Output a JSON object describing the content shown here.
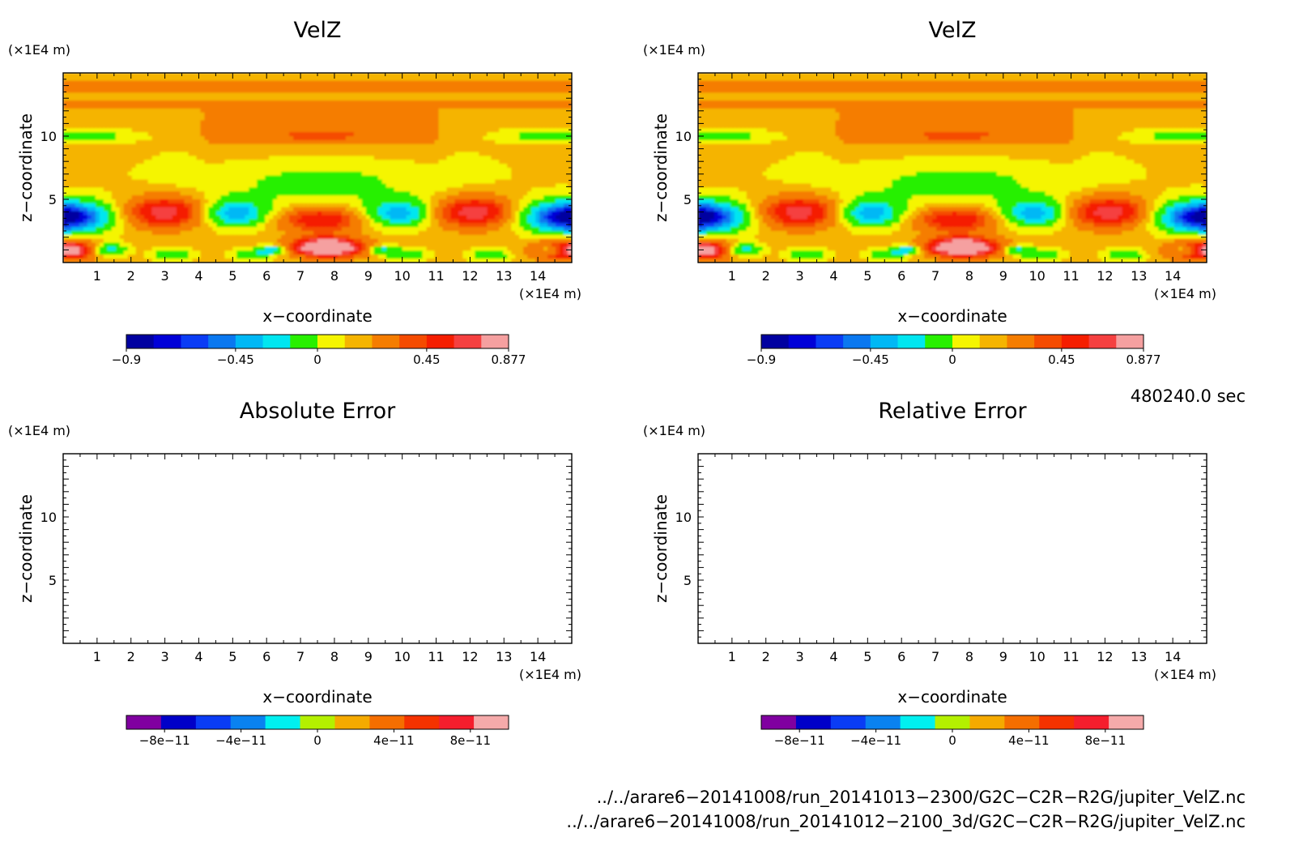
{
  "chart_data": [
    {
      "type": "heatmap",
      "title": "VelZ",
      "xlabel": "x−coordinate",
      "ylabel": "z−coordinate",
      "x_unit": "(×1E4 m)",
      "y_unit": "(×1E4 m)",
      "xlim": [
        0,
        15
      ],
      "ylim": [
        0,
        15
      ],
      "x_ticks": [
        "1",
        "2",
        "3",
        "4",
        "5",
        "6",
        "7",
        "8",
        "9",
        "10",
        "11",
        "12",
        "13",
        "14"
      ],
      "y_ticks": [
        "5",
        "10"
      ],
      "colorbar": {
        "levels": [
          -0.9,
          -0.8,
          -0.7,
          -0.6,
          -0.45,
          -0.35,
          -0.2,
          0,
          0.1,
          0.2,
          0.35,
          0.45,
          0.6,
          0.7,
          0.877
        ],
        "colors": [
          "#0000a0",
          "#0000d8",
          "#0a3cf5",
          "#0a78f0",
          "#00b8f5",
          "#00e6f0",
          "#28f000",
          "#f5f500",
          "#f5b400",
          "#f57d00",
          "#f54b00",
          "#f51e00",
          "#f54040",
          "#f5a0a0"
        ],
        "tick_labels": [
          "−0.9",
          "−0.45",
          "0",
          "0.45",
          "0.877"
        ]
      }
    },
    {
      "type": "heatmap",
      "title": "VelZ",
      "xlabel": "x−coordinate",
      "ylabel": "z−coordinate",
      "x_unit": "(×1E4 m)",
      "y_unit": "(×1E4 m)",
      "xlim": [
        0,
        15
      ],
      "ylim": [
        0,
        15
      ],
      "x_ticks": [
        "1",
        "2",
        "3",
        "4",
        "5",
        "6",
        "7",
        "8",
        "9",
        "10",
        "11",
        "12",
        "13",
        "14"
      ],
      "y_ticks": [
        "5",
        "10"
      ],
      "colorbar": {
        "levels": [
          -0.9,
          -0.8,
          -0.7,
          -0.6,
          -0.45,
          -0.35,
          -0.2,
          0,
          0.1,
          0.2,
          0.35,
          0.45,
          0.6,
          0.7,
          0.877
        ],
        "colors": [
          "#0000a0",
          "#0000d8",
          "#0a3cf5",
          "#0a78f0",
          "#00b8f5",
          "#00e6f0",
          "#28f000",
          "#f5f500",
          "#f5b400",
          "#f57d00",
          "#f54b00",
          "#f51e00",
          "#f54040",
          "#f5a0a0"
        ],
        "tick_labels": [
          "−0.9",
          "−0.45",
          "0",
          "0.45",
          "0.877"
        ]
      }
    },
    {
      "type": "heatmap",
      "title": "Absolute Error",
      "xlabel": "x−coordinate",
      "ylabel": "z−coordinate",
      "x_unit": "(×1E4 m)",
      "y_unit": "(×1E4 m)",
      "xlim": [
        0,
        15
      ],
      "ylim": [
        0,
        15
      ],
      "x_ticks": [
        "1",
        "2",
        "3",
        "4",
        "5",
        "6",
        "7",
        "8",
        "9",
        "10",
        "11",
        "12",
        "13",
        "14"
      ],
      "y_ticks": [
        "5",
        "10"
      ],
      "colorbar": {
        "levels": [
          -1e-10,
          -8e-11,
          -6e-11,
          -4e-11,
          -2e-11,
          0,
          2e-11,
          4e-11,
          6e-11,
          8e-11,
          1e-10
        ],
        "colors": [
          "#8000a0",
          "#0000c8",
          "#0a3cf5",
          "#0a82f0",
          "#00f0f0",
          "#b4f000",
          "#f5aa00",
          "#f56e00",
          "#f53200",
          "#f51e2d",
          "#f5aaaa"
        ],
        "tick_labels": [
          "−8e−11",
          "−4e−11",
          "0",
          "4e−11",
          "8e−11"
        ]
      }
    },
    {
      "type": "heatmap",
      "title": "Relative Error",
      "xlabel": "x−coordinate",
      "ylabel": "z−coordinate",
      "x_unit": "(×1E4 m)",
      "y_unit": "(×1E4 m)",
      "xlim": [
        0,
        15
      ],
      "ylim": [
        0,
        15
      ],
      "x_ticks": [
        "1",
        "2",
        "3",
        "4",
        "5",
        "6",
        "7",
        "8",
        "9",
        "10",
        "11",
        "12",
        "13",
        "14"
      ],
      "y_ticks": [
        "5",
        "10"
      ],
      "colorbar": {
        "levels": [
          -1e-10,
          -8e-11,
          -6e-11,
          -4e-11,
          -2e-11,
          0,
          2e-11,
          4e-11,
          6e-11,
          8e-11,
          1e-10
        ],
        "colors": [
          "#8000a0",
          "#0000c8",
          "#0a3cf5",
          "#0a82f0",
          "#00f0f0",
          "#b4f000",
          "#f5aa00",
          "#f56e00",
          "#f53200",
          "#f51e2d",
          "#f5aaaa"
        ],
        "tick_labels": [
          "−8e−11",
          "−4e−11",
          "0",
          "4e−11",
          "8e−11"
        ]
      }
    }
  ],
  "time_label": "480240.0 sec",
  "footer": {
    "line1": "../../arare6−20141008/run_20141013−2300/G2C−C2R−R2G/jupiter_VelZ.nc",
    "line2": "../../arare6−20141008/run_20141012−2100_3d/G2C−C2R−R2G/jupiter_VelZ.nc"
  }
}
